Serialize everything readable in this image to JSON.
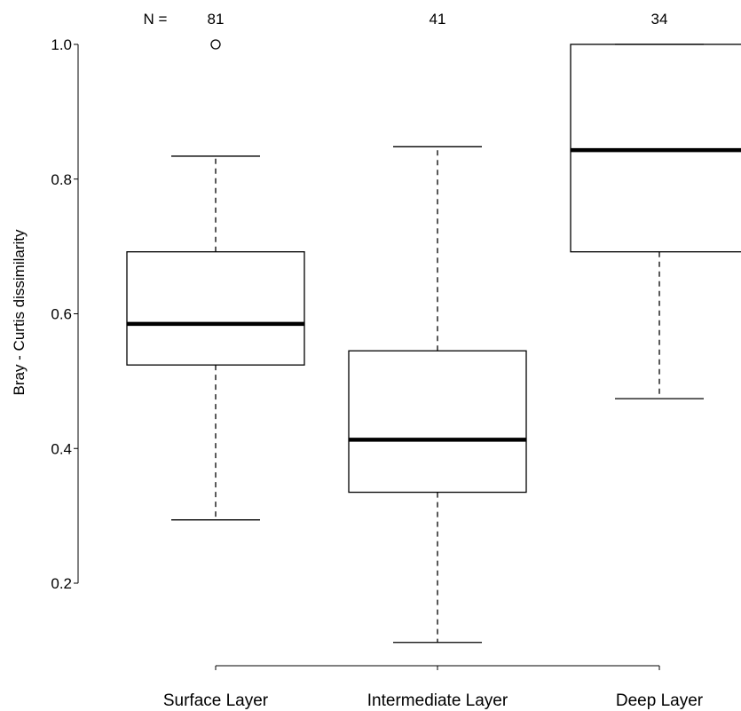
{
  "chart_data": {
    "type": "box",
    "ylabel": "Bray - Curtis dissimilarity",
    "n_label": "N =",
    "y_ticks": [
      "0.2",
      "0.4",
      "0.6",
      "0.8",
      "1.0"
    ],
    "y_tick_values": [
      0.2,
      0.4,
      0.6,
      0.8,
      1.0
    ],
    "groups": [
      {
        "label": "Surface Layer",
        "n": "81",
        "whisker_low": 0.294,
        "q1": 0.524,
        "median": 0.585,
        "q3": 0.692,
        "whisker_high": 0.834,
        "outliers": [
          1.0
        ]
      },
      {
        "label": "Intermediate Layer",
        "n": "41",
        "whisker_low": 0.112,
        "q1": 0.335,
        "median": 0.413,
        "q3": 0.545,
        "whisker_high": 0.848,
        "outliers": []
      },
      {
        "label": "Deep Layer",
        "n": "34",
        "whisker_low": 0.474,
        "q1": 0.692,
        "median": 0.843,
        "q3": 1.0,
        "whisker_high": 1.0,
        "outliers": []
      }
    ]
  }
}
